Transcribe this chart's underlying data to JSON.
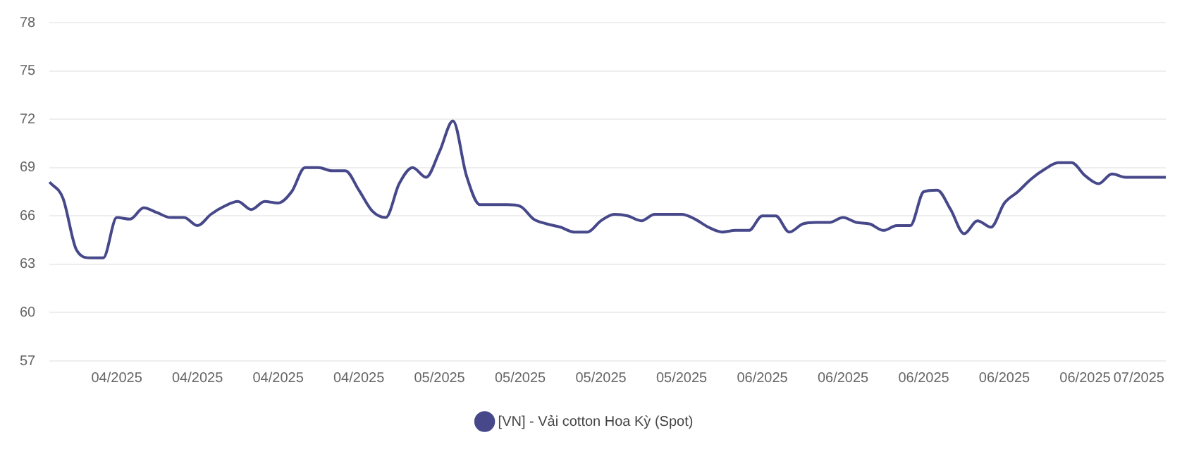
{
  "chart_data": {
    "type": "line",
    "categories": [
      null,
      null,
      null,
      null,
      null,
      "04/2025",
      null,
      null,
      null,
      null,
      null,
      "04/2025",
      null,
      null,
      null,
      null,
      null,
      "04/2025",
      null,
      null,
      null,
      null,
      null,
      "04/2025",
      null,
      null,
      null,
      null,
      null,
      "05/2025",
      null,
      null,
      null,
      null,
      null,
      "05/2025",
      null,
      null,
      null,
      null,
      null,
      "05/2025",
      null,
      null,
      null,
      null,
      null,
      "05/2025",
      null,
      null,
      null,
      null,
      null,
      "06/2025",
      null,
      null,
      null,
      null,
      null,
      "06/2025",
      null,
      null,
      null,
      null,
      null,
      "06/2025",
      null,
      null,
      null,
      null,
      null,
      "06/2025",
      null,
      null,
      null,
      null,
      null,
      "06/2025",
      null,
      null,
      null,
      "07/2025",
      null,
      null
    ],
    "series": [
      {
        "name": "[VN] - Vải cotton Hoa Kỳ (Spot)",
        "color": "#47488a",
        "values": [
          68.1,
          67.1,
          63.9,
          63.4,
          63.4,
          65.9,
          65.8,
          66.5,
          66.2,
          65.9,
          65.9,
          65.4,
          66.1,
          66.6,
          66.9,
          66.4,
          66.9,
          66.8,
          67.5,
          69.0,
          69.0,
          68.8,
          68.8,
          67.6,
          66.3,
          65.9,
          68.0,
          69.0,
          68.4,
          70.0,
          71.9,
          68.5,
          66.7,
          66.7,
          66.7,
          66.6,
          65.8,
          65.5,
          65.3,
          65.0,
          65.0,
          65.7,
          66.1,
          66.0,
          65.7,
          66.1,
          66.1,
          66.1,
          65.8,
          65.3,
          65.0,
          65.1,
          65.1,
          66.0,
          66.0,
          65.0,
          65.5,
          65.6,
          65.6,
          65.9,
          65.6,
          65.5,
          65.1,
          65.4,
          65.4,
          67.5,
          67.6,
          66.4,
          64.9,
          65.7,
          65.3,
          66.8,
          67.5,
          68.3,
          68.9,
          69.3,
          69.3,
          68.5,
          68.0,
          68.6,
          68.4,
          68.4,
          68.4,
          68.4
        ]
      }
    ],
    "ylim": [
      57,
      78
    ],
    "yticks": [
      57,
      60,
      63,
      66,
      69,
      72,
      75,
      78
    ],
    "grid": "y",
    "legend": "bottom",
    "marker": "none",
    "line_style": "solid"
  }
}
